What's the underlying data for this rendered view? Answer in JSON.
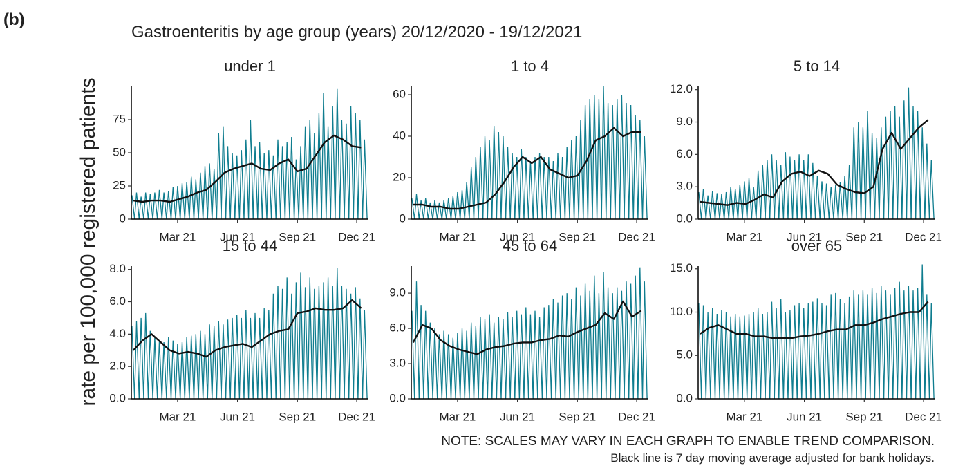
{
  "chart_data": {
    "type": "line",
    "label": "(b)",
    "title": "Gastroenteritis by age group (years) 20/12/2020 - 19/12/2021",
    "y_label": "rate per 100,000 registered patients",
    "note": "NOTE: SCALES MAY VARY IN EACH GRAPH TO ENABLE TREND COMPARISON.",
    "note2": "Black line is 7 day moving average adjusted for bank holidays.",
    "daily_color": "#0f7d8f",
    "ma_color": "#111111",
    "xlim": [
      0,
      364
    ],
    "xticks": [
      {
        "value": 71,
        "label": "Mar 21"
      },
      {
        "value": 163,
        "label": "Jun 21"
      },
      {
        "value": 255,
        "label": "Sep 21"
      },
      {
        "value": 346,
        "label": "Dec 21"
      }
    ],
    "x": [
      1,
      5,
      8,
      12,
      15,
      19,
      22,
      26,
      29,
      33,
      36,
      40,
      43,
      47,
      50,
      54,
      57,
      61,
      64,
      68,
      71,
      75,
      78,
      82,
      85,
      89,
      92,
      96,
      99,
      103,
      106,
      110,
      113,
      117,
      120,
      124,
      127,
      131,
      134,
      138,
      141,
      145,
      148,
      152,
      155,
      159,
      162,
      166,
      169,
      173,
      176,
      180,
      183,
      187,
      190,
      194,
      197,
      201,
      204,
      208,
      211,
      215,
      218,
      222,
      225,
      229,
      232,
      236,
      239,
      243,
      246,
      250,
      253,
      257,
      260,
      264,
      267,
      271,
      274,
      278,
      281,
      285,
      288,
      292,
      295,
      299,
      302,
      306,
      309,
      313,
      316,
      320,
      323,
      327,
      330,
      334,
      337,
      341,
      344,
      348,
      351,
      355,
      358,
      362
    ],
    "ma_x": [
      3,
      17,
      31,
      45,
      59,
      73,
      87,
      101,
      115,
      129,
      143,
      157,
      171,
      185,
      199,
      213,
      227,
      241,
      255,
      269,
      283,
      297,
      311,
      325,
      339,
      353
    ],
    "panels": [
      {
        "title": "under 1",
        "ylim": [
          0,
          100
        ],
        "yticks": [
          0,
          25,
          50,
          75
        ],
        "daily": [
          18,
          0,
          20,
          0,
          17,
          0,
          20,
          0,
          19,
          0,
          20,
          0,
          22,
          0,
          20,
          0,
          21,
          0,
          24,
          0,
          25,
          0,
          27,
          0,
          28,
          0,
          32,
          0,
          30,
          0,
          35,
          0,
          40,
          0,
          42,
          0,
          38,
          0,
          65,
          0,
          70,
          0,
          55,
          0,
          50,
          0,
          48,
          0,
          52,
          0,
          60,
          0,
          75,
          0,
          55,
          0,
          58,
          0,
          50,
          0,
          52,
          0,
          48,
          0,
          60,
          0,
          55,
          0,
          58,
          0,
          62,
          0,
          45,
          0,
          55,
          0,
          70,
          0,
          75,
          0,
          65,
          0,
          80,
          0,
          95,
          0,
          70,
          0,
          85,
          0,
          98,
          0,
          75,
          0,
          72,
          0,
          85,
          0,
          80,
          0,
          75,
          0,
          60,
          0
        ],
        "ma": [
          14,
          13,
          14,
          14,
          13,
          15,
          17,
          20,
          22,
          28,
          35,
          38,
          40,
          42,
          38,
          37,
          42,
          45,
          36,
          38,
          48,
          58,
          63,
          60,
          55,
          54
        ]
      },
      {
        "title": "1 to 4",
        "ylim": [
          0,
          64
        ],
        "yticks": [
          0,
          20,
          40,
          60
        ],
        "daily": [
          10,
          0,
          12,
          0,
          9,
          0,
          10,
          0,
          8,
          0,
          9,
          0,
          8,
          0,
          9,
          0,
          10,
          0,
          11,
          0,
          13,
          0,
          14,
          0,
          18,
          0,
          25,
          0,
          30,
          0,
          35,
          0,
          40,
          0,
          38,
          0,
          45,
          0,
          42,
          0,
          40,
          0,
          35,
          0,
          32,
          0,
          30,
          0,
          34,
          0,
          30,
          0,
          28,
          0,
          30,
          0,
          32,
          0,
          30,
          0,
          30,
          0,
          28,
          0,
          32,
          0,
          30,
          0,
          35,
          0,
          38,
          0,
          40,
          0,
          48,
          0,
          55,
          0,
          58,
          0,
          60,
          0,
          58,
          0,
          64,
          0,
          56,
          0,
          55,
          0,
          58,
          0,
          60,
          0,
          56,
          0,
          55,
          0,
          50,
          0,
          48,
          0,
          40,
          0
        ],
        "ma": [
          7,
          7,
          6,
          6,
          5,
          5,
          6,
          7,
          8,
          12,
          18,
          25,
          30,
          27,
          30,
          24,
          22,
          20,
          21,
          28,
          38,
          40,
          44,
          40,
          42,
          42
        ]
      },
      {
        "title": "5 to 14",
        "ylim": [
          0,
          12.3
        ],
        "yticks": [
          {
            "value": 0,
            "label": "0.0"
          },
          {
            "value": 3,
            "label": "3.0"
          },
          {
            "value": 6,
            "label": "6.0"
          },
          {
            "value": 9,
            "label": "9.0"
          },
          {
            "value": 12,
            "label": "12.0"
          }
        ],
        "daily": [
          2.5,
          0,
          2.8,
          0,
          2.2,
          0,
          2.6,
          0,
          2.4,
          0,
          2.3,
          0,
          2.5,
          0,
          3.0,
          0,
          2.8,
          0,
          3.2,
          0,
          3.5,
          0,
          3.8,
          0,
          3.0,
          0,
          4.5,
          0,
          5.0,
          0,
          5.5,
          0,
          6.0,
          0,
          5.5,
          0,
          5.0,
          0,
          6.2,
          0,
          5.8,
          0,
          5.5,
          0,
          6.0,
          0,
          5.5,
          0,
          6.0,
          0,
          5.2,
          0,
          4.0,
          0,
          3.5,
          0,
          3.3,
          0,
          3.0,
          0,
          3.2,
          0,
          3.4,
          0,
          4.0,
          0,
          5.0,
          0,
          8.5,
          0,
          9.0,
          0,
          8.5,
          0,
          10.0,
          0,
          8.0,
          0,
          7.5,
          0,
          8.5,
          0,
          9.5,
          0,
          10.0,
          0,
          10.5,
          0,
          9.5,
          0,
          11.0,
          0,
          12.2,
          0,
          10.5,
          0,
          10.0,
          0,
          8.5,
          0,
          7.0,
          0,
          5.5,
          0
        ],
        "ma": [
          1.6,
          1.5,
          1.4,
          1.3,
          1.5,
          1.4,
          1.8,
          2.3,
          2.0,
          3.5,
          4.2,
          4.4,
          4.0,
          4.5,
          4.2,
          3.2,
          2.8,
          2.5,
          2.4,
          3.0,
          6.5,
          8.0,
          6.5,
          7.5,
          8.5,
          9.2
        ]
      },
      {
        "title": "15 to 44",
        "ylim": [
          0,
          8.2
        ],
        "yticks": [
          {
            "value": 0,
            "label": "0.0"
          },
          {
            "value": 2,
            "label": "2.0"
          },
          {
            "value": 4,
            "label": "4.0"
          },
          {
            "value": 6,
            "label": "6.0"
          },
          {
            "value": 8,
            "label": "8.0"
          }
        ],
        "daily": [
          4.5,
          0,
          4.8,
          0,
          5.0,
          0,
          5.3,
          0,
          4.2,
          0,
          3.8,
          0,
          3.6,
          0,
          3.5,
          0,
          3.8,
          0,
          3.6,
          0,
          3.4,
          0,
          3.5,
          0,
          3.8,
          0,
          3.9,
          0,
          4.0,
          0,
          4.2,
          0,
          4.0,
          0,
          4.6,
          0,
          4.5,
          0,
          4.8,
          0,
          4.6,
          0,
          4.9,
          0,
          5.0,
          0,
          5.2,
          0,
          5.0,
          0,
          5.5,
          0,
          5.0,
          0,
          5.3,
          0,
          5.0,
          0,
          5.6,
          0,
          5.5,
          0,
          6.5,
          0,
          7.0,
          0,
          6.8,
          0,
          7.5,
          0,
          6.5,
          0,
          7.2,
          0,
          7.8,
          0,
          6.9,
          0,
          7.5,
          0,
          6.8,
          0,
          7.0,
          0,
          7.2,
          0,
          7.5,
          0,
          7.0,
          0,
          8.1,
          0,
          7.0,
          0,
          6.8,
          0,
          6.5,
          0,
          6.9,
          0,
          6.2,
          0,
          5.5,
          0
        ],
        "ma": [
          3.0,
          3.6,
          4.0,
          3.5,
          3.0,
          2.8,
          2.9,
          2.8,
          2.6,
          3.0,
          3.2,
          3.3,
          3.4,
          3.2,
          3.6,
          4.0,
          4.2,
          4.3,
          5.3,
          5.4,
          5.6,
          5.5,
          5.5,
          5.6,
          6.1,
          5.6
        ]
      },
      {
        "title": "45 to 64",
        "ylim": [
          0,
          11.3
        ],
        "yticks": [
          {
            "value": 0,
            "label": "0.0"
          },
          {
            "value": 3,
            "label": "3.0"
          },
          {
            "value": 6,
            "label": "6.0"
          },
          {
            "value": 9,
            "label": "9.0"
          }
        ],
        "daily": [
          7.5,
          0,
          10.0,
          0,
          8.0,
          0,
          7.5,
          0,
          6.5,
          0,
          6.0,
          0,
          5.5,
          0,
          5.8,
          0,
          5.5,
          0,
          5.2,
          0,
          5.6,
          0,
          6.0,
          0,
          5.8,
          0,
          6.5,
          0,
          6.2,
          0,
          7.0,
          0,
          6.8,
          0,
          7.2,
          0,
          6.5,
          0,
          7.0,
          0,
          6.8,
          0,
          7.4,
          0,
          7.0,
          0,
          7.5,
          0,
          7.2,
          0,
          7.8,
          0,
          7.2,
          0,
          7.5,
          0,
          7.0,
          0,
          7.8,
          0,
          8.0,
          0,
          8.5,
          0,
          8.2,
          0,
          8.8,
          0,
          9.0,
          0,
          8.5,
          0,
          9.5,
          0,
          8.8,
          0,
          9.8,
          0,
          9.2,
          0,
          10.5,
          0,
          9.0,
          0,
          10.8,
          0,
          9.5,
          0,
          9.0,
          0,
          9.5,
          0,
          9.2,
          0,
          10.0,
          0,
          9.8,
          0,
          10.5,
          0,
          11.2,
          0,
          10.0,
          0
        ],
        "ma": [
          4.8,
          6.3,
          6.0,
          5.0,
          4.5,
          4.2,
          4.0,
          3.8,
          4.2,
          4.4,
          4.5,
          4.7,
          4.8,
          4.8,
          5.0,
          5.1,
          5.4,
          5.3,
          5.7,
          6.0,
          6.3,
          7.3,
          6.8,
          8.3,
          7.0,
          7.5
        ]
      },
      {
        "title": "over 65",
        "ylim": [
          0,
          15.3
        ],
        "yticks": [
          {
            "value": 0,
            "label": "0.0"
          },
          {
            "value": 5,
            "label": "5.0"
          },
          {
            "value": 10,
            "label": "10.0"
          },
          {
            "value": 15,
            "label": "15.0"
          }
        ],
        "daily": [
          11.0,
          0,
          10.8,
          0,
          10.0,
          0,
          10.5,
          0,
          9.8,
          0,
          10.2,
          0,
          10.0,
          0,
          9.5,
          0,
          9.8,
          0,
          9.5,
          0,
          9.6,
          0,
          9.8,
          0,
          10.0,
          0,
          10.5,
          0,
          9.8,
          0,
          10.0,
          0,
          11.2,
          0,
          10.5,
          0,
          11.5,
          0,
          10.0,
          0,
          10.2,
          0,
          10.8,
          0,
          11.0,
          0,
          10.5,
          0,
          11.0,
          0,
          11.2,
          0,
          11.6,
          0,
          11.0,
          0,
          10.8,
          0,
          12.0,
          0,
          12.2,
          0,
          11.5,
          0,
          11.0,
          0,
          11.8,
          0,
          12.5,
          0,
          12.0,
          0,
          12.5,
          0,
          12.0,
          0,
          12.8,
          0,
          12.2,
          0,
          13.0,
          0,
          12.5,
          0,
          12.0,
          0,
          12.8,
          0,
          13.5,
          0,
          12.5,
          0,
          13.0,
          0,
          12.5,
          0,
          12.8,
          0,
          15.5,
          0,
          12.0,
          0,
          11.0,
          0
        ],
        "ma": [
          7.5,
          8.2,
          8.5,
          8.0,
          7.5,
          7.5,
          7.2,
          7.2,
          7.0,
          7.0,
          7.0,
          7.2,
          7.3,
          7.5,
          7.8,
          8.0,
          8.0,
          8.5,
          8.5,
          8.8,
          9.2,
          9.5,
          9.8,
          10.0,
          10.0,
          11.2
        ]
      }
    ]
  }
}
